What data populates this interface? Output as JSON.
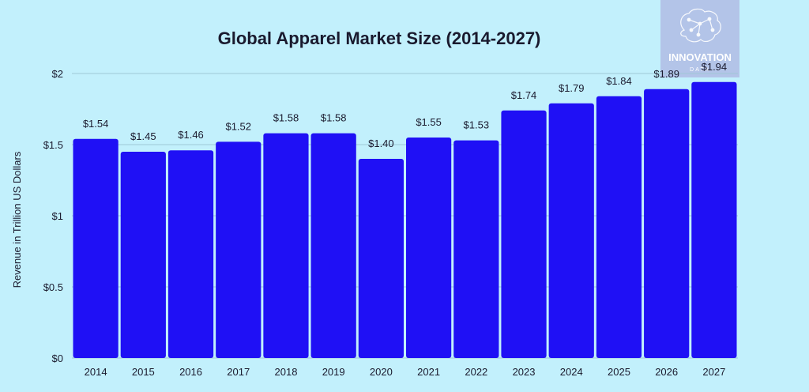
{
  "chart_data": {
    "type": "bar",
    "title": "Global Apparel Market Size (2014-2027)",
    "xlabel": "",
    "ylabel": "Revenue in Trillion US Dollars",
    "categories": [
      "2014",
      "2015",
      "2016",
      "2017",
      "2018",
      "2019",
      "2020",
      "2021",
      "2022",
      "2023",
      "2024",
      "2025",
      "2026",
      "2027"
    ],
    "values": [
      1.54,
      1.45,
      1.46,
      1.52,
      1.58,
      1.58,
      1.4,
      1.55,
      1.53,
      1.74,
      1.79,
      1.84,
      1.89,
      1.94
    ],
    "value_labels": [
      "$1.54",
      "$1.45",
      "$1.46",
      "$1.52",
      "$1.58",
      "$1.58",
      "$1.40",
      "$1.55",
      "$1.53",
      "$1.74",
      "$1.79",
      "$1.84",
      "$1.89",
      "$1.94"
    ],
    "ylim": [
      0,
      2
    ],
    "yticks": [
      0,
      0.5,
      1,
      1.5,
      2
    ],
    "ytick_labels": [
      "$0",
      "$0.5",
      "$1",
      "$1.5",
      "$2"
    ],
    "grid": true,
    "legend": "none"
  },
  "logo": {
    "text_top": "INNOVATION",
    "text_bottom": "DATA"
  },
  "colors": {
    "background": "#c2f0fc",
    "bar": "#1f10f5",
    "text": "#1a1a2e",
    "grid": "#9fc9d6",
    "logo_bg": "#b3c4e8"
  }
}
